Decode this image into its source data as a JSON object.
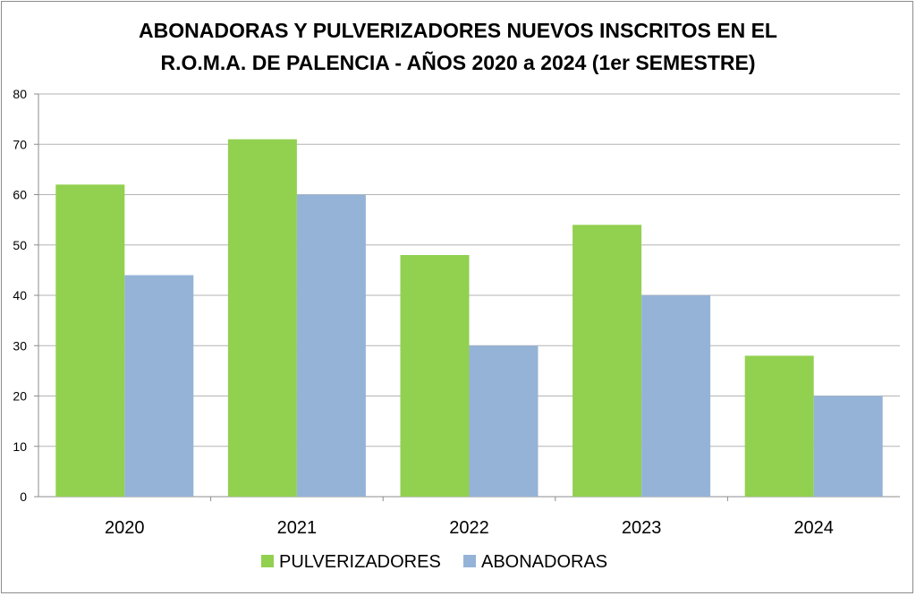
{
  "chart_data": {
    "type": "bar",
    "title_line1": "ABONADORAS Y PULVERIZADORES NUEVOS INSCRITOS EN EL",
    "title_line2": "R.O.M.A. DE PALENCIA - AÑOS 2020 a 2024 (1er SEMESTRE)",
    "categories": [
      "2020",
      "2021",
      "2022",
      "2023",
      "2024"
    ],
    "series": [
      {
        "name": "PULVERIZADORES",
        "color": "#92d050",
        "values": [
          62,
          71,
          48,
          54,
          28
        ]
      },
      {
        "name": "ABONADORAS",
        "color": "#95b3d7",
        "values": [
          44,
          60,
          30,
          40,
          20
        ]
      }
    ],
    "ylim": [
      0,
      80
    ],
    "yticks": [
      0,
      10,
      20,
      30,
      40,
      50,
      60,
      70,
      80
    ],
    "ytick_labels": [
      "0",
      "10",
      "20",
      "30",
      "40",
      "50",
      "60",
      "70",
      "80"
    ],
    "grid": true,
    "legend_position": "bottom",
    "xlabel": "",
    "ylabel": ""
  }
}
